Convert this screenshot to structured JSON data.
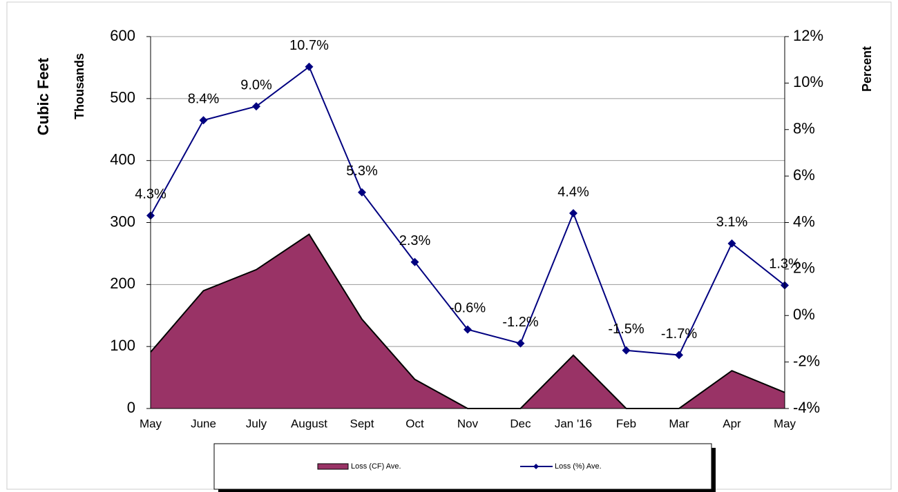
{
  "chart_data": {
    "type": "area-line",
    "categories": [
      "May",
      "June",
      "July",
      "August",
      "Sept",
      "Oct",
      "Nov",
      "Dec",
      "Jan '16",
      "Feb",
      "Mar",
      "Apr",
      "May"
    ],
    "series": [
      {
        "name": "Loss (CF) Ave.",
        "color": "#993366",
        "type": "area",
        "values": [
          91,
          190,
          224,
          281,
          144,
          47,
          0,
          0,
          86,
          0,
          0,
          61,
          26
        ]
      },
      {
        "name": "Loss (%) Ave.",
        "color": "#000080",
        "type": "line",
        "axis": "y2",
        "values": [
          4.3,
          8.4,
          9.0,
          10.7,
          5.3,
          2.3,
          -0.6,
          -1.2,
          4.4,
          -1.5,
          -1.7,
          3.1,
          1.3
        ],
        "value_labels": [
          "4.3%",
          "8.4%",
          "9.0%",
          "10.7%",
          "5.3%",
          "2.3%",
          "-0.6%",
          "-1.2%",
          "4.4%",
          "-1.5%",
          "-1.7%",
          "3.1%",
          "1.3%"
        ]
      }
    ],
    "y_label": "Cubic Feet",
    "y_sublabel": "Thousands",
    "y2_label": "Percent",
    "ylim": [
      0,
      600
    ],
    "yticks": [
      0,
      100,
      200,
      300,
      400,
      500,
      600
    ],
    "y2lim": [
      -4,
      12
    ],
    "y2ticks": [
      {
        "value": -4,
        "label": "-4%"
      },
      {
        "value": -2,
        "label": "-2%"
      },
      {
        "value": 0,
        "label": "0%"
      },
      {
        "value": 2,
        "label": "2%"
      },
      {
        "value": 4,
        "label": "4%"
      },
      {
        "value": 6,
        "label": "6%"
      },
      {
        "value": 8,
        "label": "8%"
      },
      {
        "value": 10,
        "label": "10%"
      },
      {
        "value": 12,
        "label": "12%"
      }
    ],
    "grid": true
  }
}
